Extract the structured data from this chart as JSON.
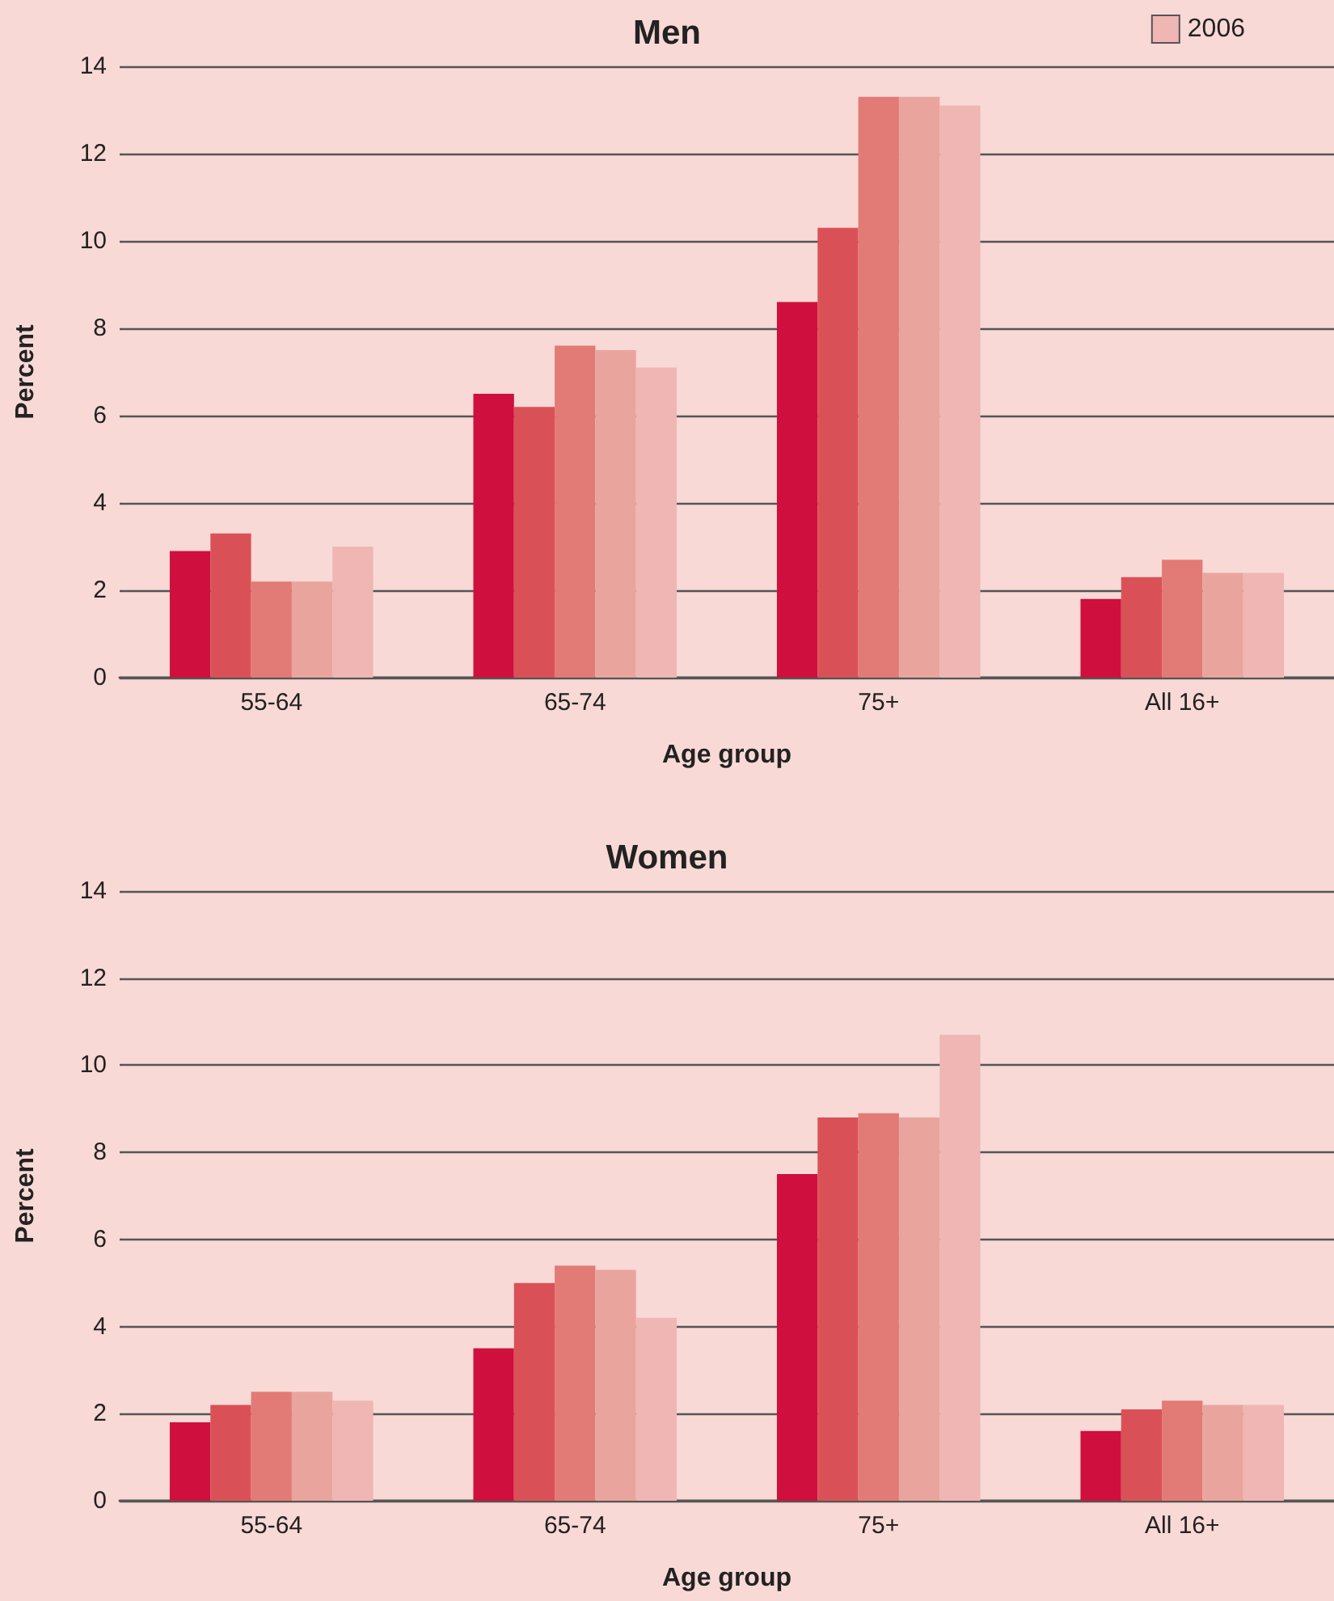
{
  "chart_data": [
    {
      "type": "bar",
      "title": "Men",
      "xlabel": "Age group",
      "ylabel": "Percent",
      "categories": [
        "55-64",
        "65-74",
        "75+",
        "All 16+"
      ],
      "series": [
        {
          "color": "#cf0f3d",
          "values": [
            2.9,
            6.5,
            8.6,
            1.8
          ]
        },
        {
          "color": "#d95157",
          "values": [
            3.3,
            6.2,
            10.3,
            2.3
          ]
        },
        {
          "color": "#e27a76",
          "values": [
            2.2,
            7.6,
            13.3,
            2.7
          ]
        },
        {
          "color": "#eaa49e",
          "values": [
            2.2,
            7.5,
            13.3,
            2.4
          ]
        },
        {
          "name": "2006",
          "color": "#efb6b3",
          "values": [
            3.0,
            7.1,
            13.1,
            2.4
          ]
        }
      ],
      "ylim": [
        0,
        14
      ],
      "yticks": [
        0,
        2,
        4,
        6,
        8,
        10,
        12,
        14
      ],
      "grid": "y",
      "legend": "top right"
    },
    {
      "type": "bar",
      "title": "Women",
      "xlabel": "Age group",
      "ylabel": "Percent",
      "categories": [
        "55-64",
        "65-74",
        "75+",
        "All 16+"
      ],
      "series": [
        {
          "color": "#cf0f3d",
          "values": [
            1.8,
            3.5,
            7.5,
            1.6
          ]
        },
        {
          "color": "#d95157",
          "values": [
            2.2,
            5.0,
            8.8,
            2.1
          ]
        },
        {
          "color": "#e27a76",
          "values": [
            2.5,
            5.4,
            8.9,
            2.3
          ]
        },
        {
          "color": "#eaa49e",
          "values": [
            2.5,
            5.3,
            8.8,
            2.2
          ]
        },
        {
          "color": "#efb6b3",
          "values": [
            2.3,
            4.2,
            10.7,
            2.2
          ]
        }
      ],
      "ylim": [
        0,
        14
      ],
      "yticks": [
        0,
        2,
        4,
        6,
        8,
        10,
        12,
        14
      ],
      "grid": "y"
    }
  ]
}
